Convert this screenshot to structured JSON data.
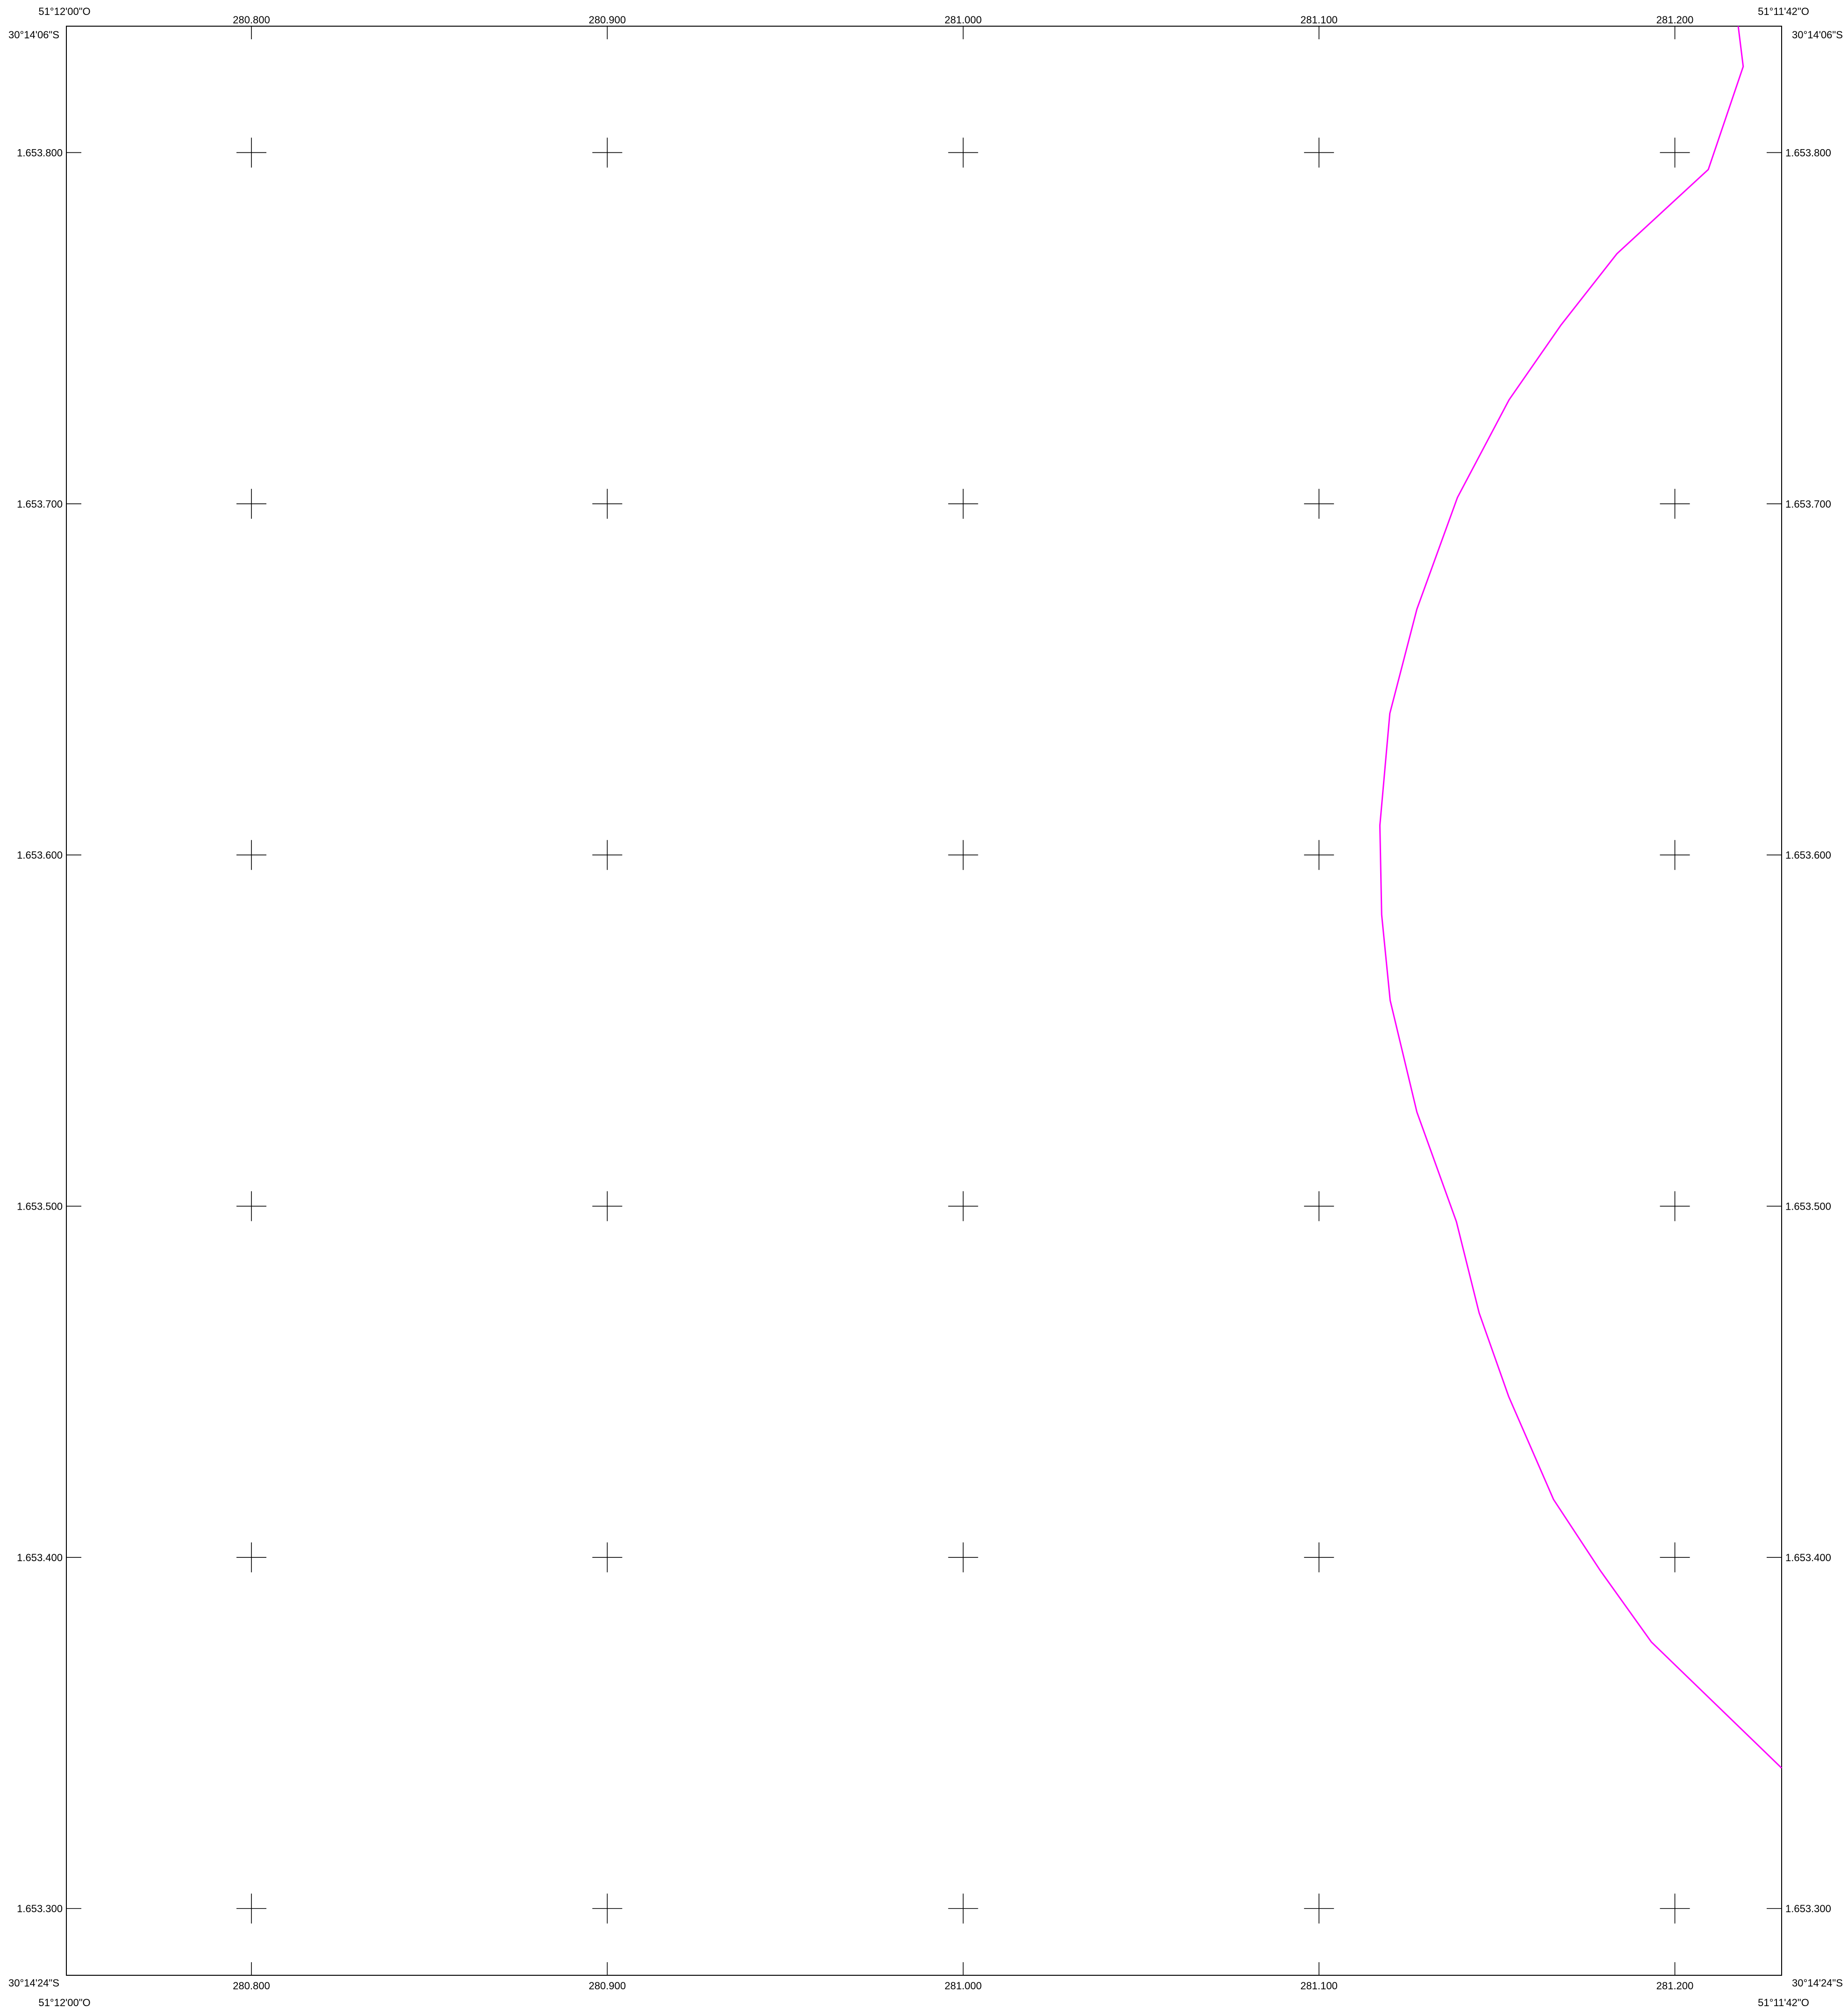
{
  "map": {
    "corners": {
      "top_left_lon": "51°12'00\"O",
      "top_right_lon": "51°11'42\"O",
      "bottom_left_lon": "51°12'00\"O",
      "bottom_right_lon": "51°11'42\"O",
      "top_left_lat": "30°14'06\"S",
      "top_right_lat": "30°14'06\"S",
      "bottom_left_lat": "30°14'24\"S",
      "bottom_right_lat": "30°14'24\"S"
    },
    "eastings": [
      {
        "label": "280.800",
        "value": 280800
      },
      {
        "label": "280.900",
        "value": 280900
      },
      {
        "label": "281.000",
        "value": 281000
      },
      {
        "label": "281.100",
        "value": 281100
      },
      {
        "label": "281.200",
        "value": 281200
      }
    ],
    "northings": [
      {
        "label": "1.653.800",
        "value": 1653800
      },
      {
        "label": "1.653.700",
        "value": 1653700
      },
      {
        "label": "1.653.600",
        "value": 1653600
      },
      {
        "label": "1.653.500",
        "value": 1653500
      },
      {
        "label": "1.653.400",
        "value": 1653400
      },
      {
        "label": "1.653.300",
        "value": 1653300
      }
    ],
    "extent": {
      "easting_min": 280748,
      "easting_max": 281230,
      "northing_min": 1653281,
      "northing_max": 1653836
    },
    "boundary_color": "#ff00ff",
    "frame_color": "#000000",
    "boundary_line": [
      {
        "e": 281217.8,
        "n": 1653836.0
      },
      {
        "e": 281219.2,
        "n": 1653824.5
      },
      {
        "e": 281209.4,
        "n": 1653795.2
      },
      {
        "e": 281183.7,
        "n": 1653771.2
      },
      {
        "e": 281168.0,
        "n": 1653750.9
      },
      {
        "e": 281153.4,
        "n": 1653729.6
      },
      {
        "e": 281138.9,
        "n": 1653701.8
      },
      {
        "e": 281127.5,
        "n": 1653670.0
      },
      {
        "e": 281119.9,
        "n": 1653640.3
      },
      {
        "e": 281117.1,
        "n": 1653608.4
      },
      {
        "e": 281117.6,
        "n": 1653583.0
      },
      {
        "e": 281120.0,
        "n": 1653558.6
      },
      {
        "e": 281127.5,
        "n": 1653526.8
      },
      {
        "e": 281138.6,
        "n": 1653495.6
      },
      {
        "e": 281145.0,
        "n": 1653469.6
      },
      {
        "e": 281153.3,
        "n": 1653445.8
      },
      {
        "e": 281165.9,
        "n": 1653416.5
      },
      {
        "e": 281179.0,
        "n": 1653396.3
      },
      {
        "e": 281193.4,
        "n": 1653375.9
      },
      {
        "e": 281230.0,
        "n": 1653340.0
      }
    ]
  }
}
